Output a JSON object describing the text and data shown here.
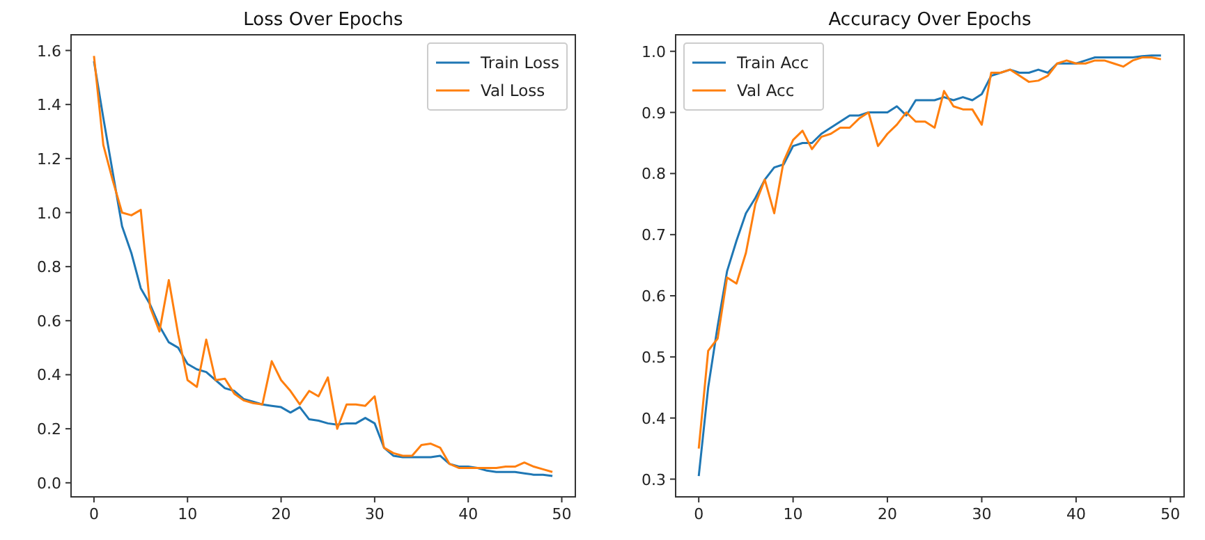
{
  "chart_data": [
    {
      "type": "line",
      "title": "Loss Over Epochs",
      "x": [
        0,
        1,
        2,
        3,
        4,
        5,
        6,
        7,
        8,
        9,
        10,
        11,
        12,
        13,
        14,
        15,
        16,
        17,
        18,
        19,
        20,
        21,
        22,
        23,
        24,
        25,
        26,
        27,
        28,
        29,
        30,
        31,
        32,
        33,
        34,
        35,
        36,
        37,
        38,
        39,
        40,
        41,
        42,
        43,
        44,
        45,
        46,
        47,
        48,
        49
      ],
      "xlim": [
        -2.45,
        51.45
      ],
      "xticks": [
        0,
        10,
        20,
        30,
        40,
        50
      ],
      "ylim": [
        -0.052,
        1.658
      ],
      "yticks": [
        {
          "value": 0,
          "label": "0.0"
        },
        {
          "value": 0.2,
          "label": "0.2"
        },
        {
          "value": 0.4,
          "label": "0.4"
        },
        {
          "value": 0.6,
          "label": "0.6"
        },
        {
          "value": 0.8,
          "label": "0.8"
        },
        {
          "value": 1,
          "label": "1.0"
        },
        {
          "value": 1.2,
          "label": "1.2"
        },
        {
          "value": 1.4,
          "label": "1.4"
        },
        {
          "value": 1.6,
          "label": "1.6"
        }
      ],
      "legend": "top right",
      "series": [
        {
          "name": "Train Loss",
          "color": "#1f77b4",
          "values": [
            1.56,
            1.35,
            1.15,
            0.95,
            0.85,
            0.72,
            0.66,
            0.58,
            0.52,
            0.5,
            0.44,
            0.42,
            0.41,
            0.38,
            0.35,
            0.34,
            0.31,
            0.3,
            0.29,
            0.285,
            0.28,
            0.26,
            0.28,
            0.235,
            0.23,
            0.22,
            0.215,
            0.22,
            0.22,
            0.24,
            0.22,
            0.13,
            0.1,
            0.095,
            0.095,
            0.095,
            0.095,
            0.1,
            0.07,
            0.06,
            0.06,
            0.055,
            0.045,
            0.04,
            0.04,
            0.04,
            0.035,
            0.03,
            0.03,
            0.025
          ]
        },
        {
          "name": "Val Loss",
          "color": "#ff7f0e",
          "values": [
            1.58,
            1.25,
            1.12,
            1.0,
            0.99,
            1.01,
            0.65,
            0.56,
            0.75,
            0.55,
            0.38,
            0.355,
            0.53,
            0.38,
            0.385,
            0.33,
            0.305,
            0.295,
            0.29,
            0.45,
            0.38,
            0.34,
            0.29,
            0.34,
            0.32,
            0.39,
            0.2,
            0.29,
            0.29,
            0.285,
            0.32,
            0.13,
            0.11,
            0.1,
            0.1,
            0.14,
            0.145,
            0.13,
            0.07,
            0.055,
            0.055,
            0.055,
            0.055,
            0.055,
            0.06,
            0.06,
            0.075,
            0.06,
            0.05,
            0.04
          ]
        }
      ]
    },
    {
      "type": "line",
      "title": "Accuracy Over Epochs",
      "x": [
        0,
        1,
        2,
        3,
        4,
        5,
        6,
        7,
        8,
        9,
        10,
        11,
        12,
        13,
        14,
        15,
        16,
        17,
        18,
        19,
        20,
        21,
        22,
        23,
        24,
        25,
        26,
        27,
        28,
        29,
        30,
        31,
        32,
        33,
        34,
        35,
        36,
        37,
        38,
        39,
        40,
        41,
        42,
        43,
        44,
        45,
        46,
        47,
        48,
        49
      ],
      "xlim": [
        -2.45,
        51.45
      ],
      "xticks": [
        0,
        10,
        20,
        30,
        40,
        50
      ],
      "ylim": [
        0.271,
        1.027
      ],
      "yticks": [
        {
          "value": 0.3,
          "label": "0.3"
        },
        {
          "value": 0.4,
          "label": "0.4"
        },
        {
          "value": 0.5,
          "label": "0.5"
        },
        {
          "value": 0.6,
          "label": "0.6"
        },
        {
          "value": 0.7,
          "label": "0.7"
        },
        {
          "value": 0.8,
          "label": "0.8"
        },
        {
          "value": 0.9,
          "label": "0.9"
        },
        {
          "value": 1,
          "label": "1.0"
        }
      ],
      "legend": "top left",
      "series": [
        {
          "name": "Train Acc",
          "color": "#1f77b4",
          "values": [
            0.305,
            0.45,
            0.55,
            0.64,
            0.69,
            0.735,
            0.76,
            0.79,
            0.81,
            0.815,
            0.845,
            0.85,
            0.85,
            0.865,
            0.875,
            0.885,
            0.895,
            0.895,
            0.9,
            0.9,
            0.9,
            0.91,
            0.895,
            0.92,
            0.92,
            0.92,
            0.925,
            0.92,
            0.925,
            0.92,
            0.93,
            0.96,
            0.965,
            0.97,
            0.965,
            0.965,
            0.97,
            0.965,
            0.98,
            0.98,
            0.98,
            0.985,
            0.99,
            0.99,
            0.99,
            0.99,
            0.99,
            0.992,
            0.993,
            0.993
          ]
        },
        {
          "name": "Val Acc",
          "color": "#ff7f0e",
          "values": [
            0.35,
            0.51,
            0.53,
            0.63,
            0.62,
            0.67,
            0.75,
            0.79,
            0.735,
            0.82,
            0.855,
            0.87,
            0.84,
            0.86,
            0.865,
            0.875,
            0.875,
            0.89,
            0.9,
            0.845,
            0.865,
            0.88,
            0.9,
            0.885,
            0.885,
            0.875,
            0.935,
            0.91,
            0.905,
            0.905,
            0.88,
            0.965,
            0.965,
            0.97,
            0.96,
            0.95,
            0.952,
            0.96,
            0.98,
            0.985,
            0.98,
            0.98,
            0.985,
            0.985,
            0.98,
            0.975,
            0.985,
            0.99,
            0.99,
            0.987
          ]
        }
      ]
    }
  ]
}
